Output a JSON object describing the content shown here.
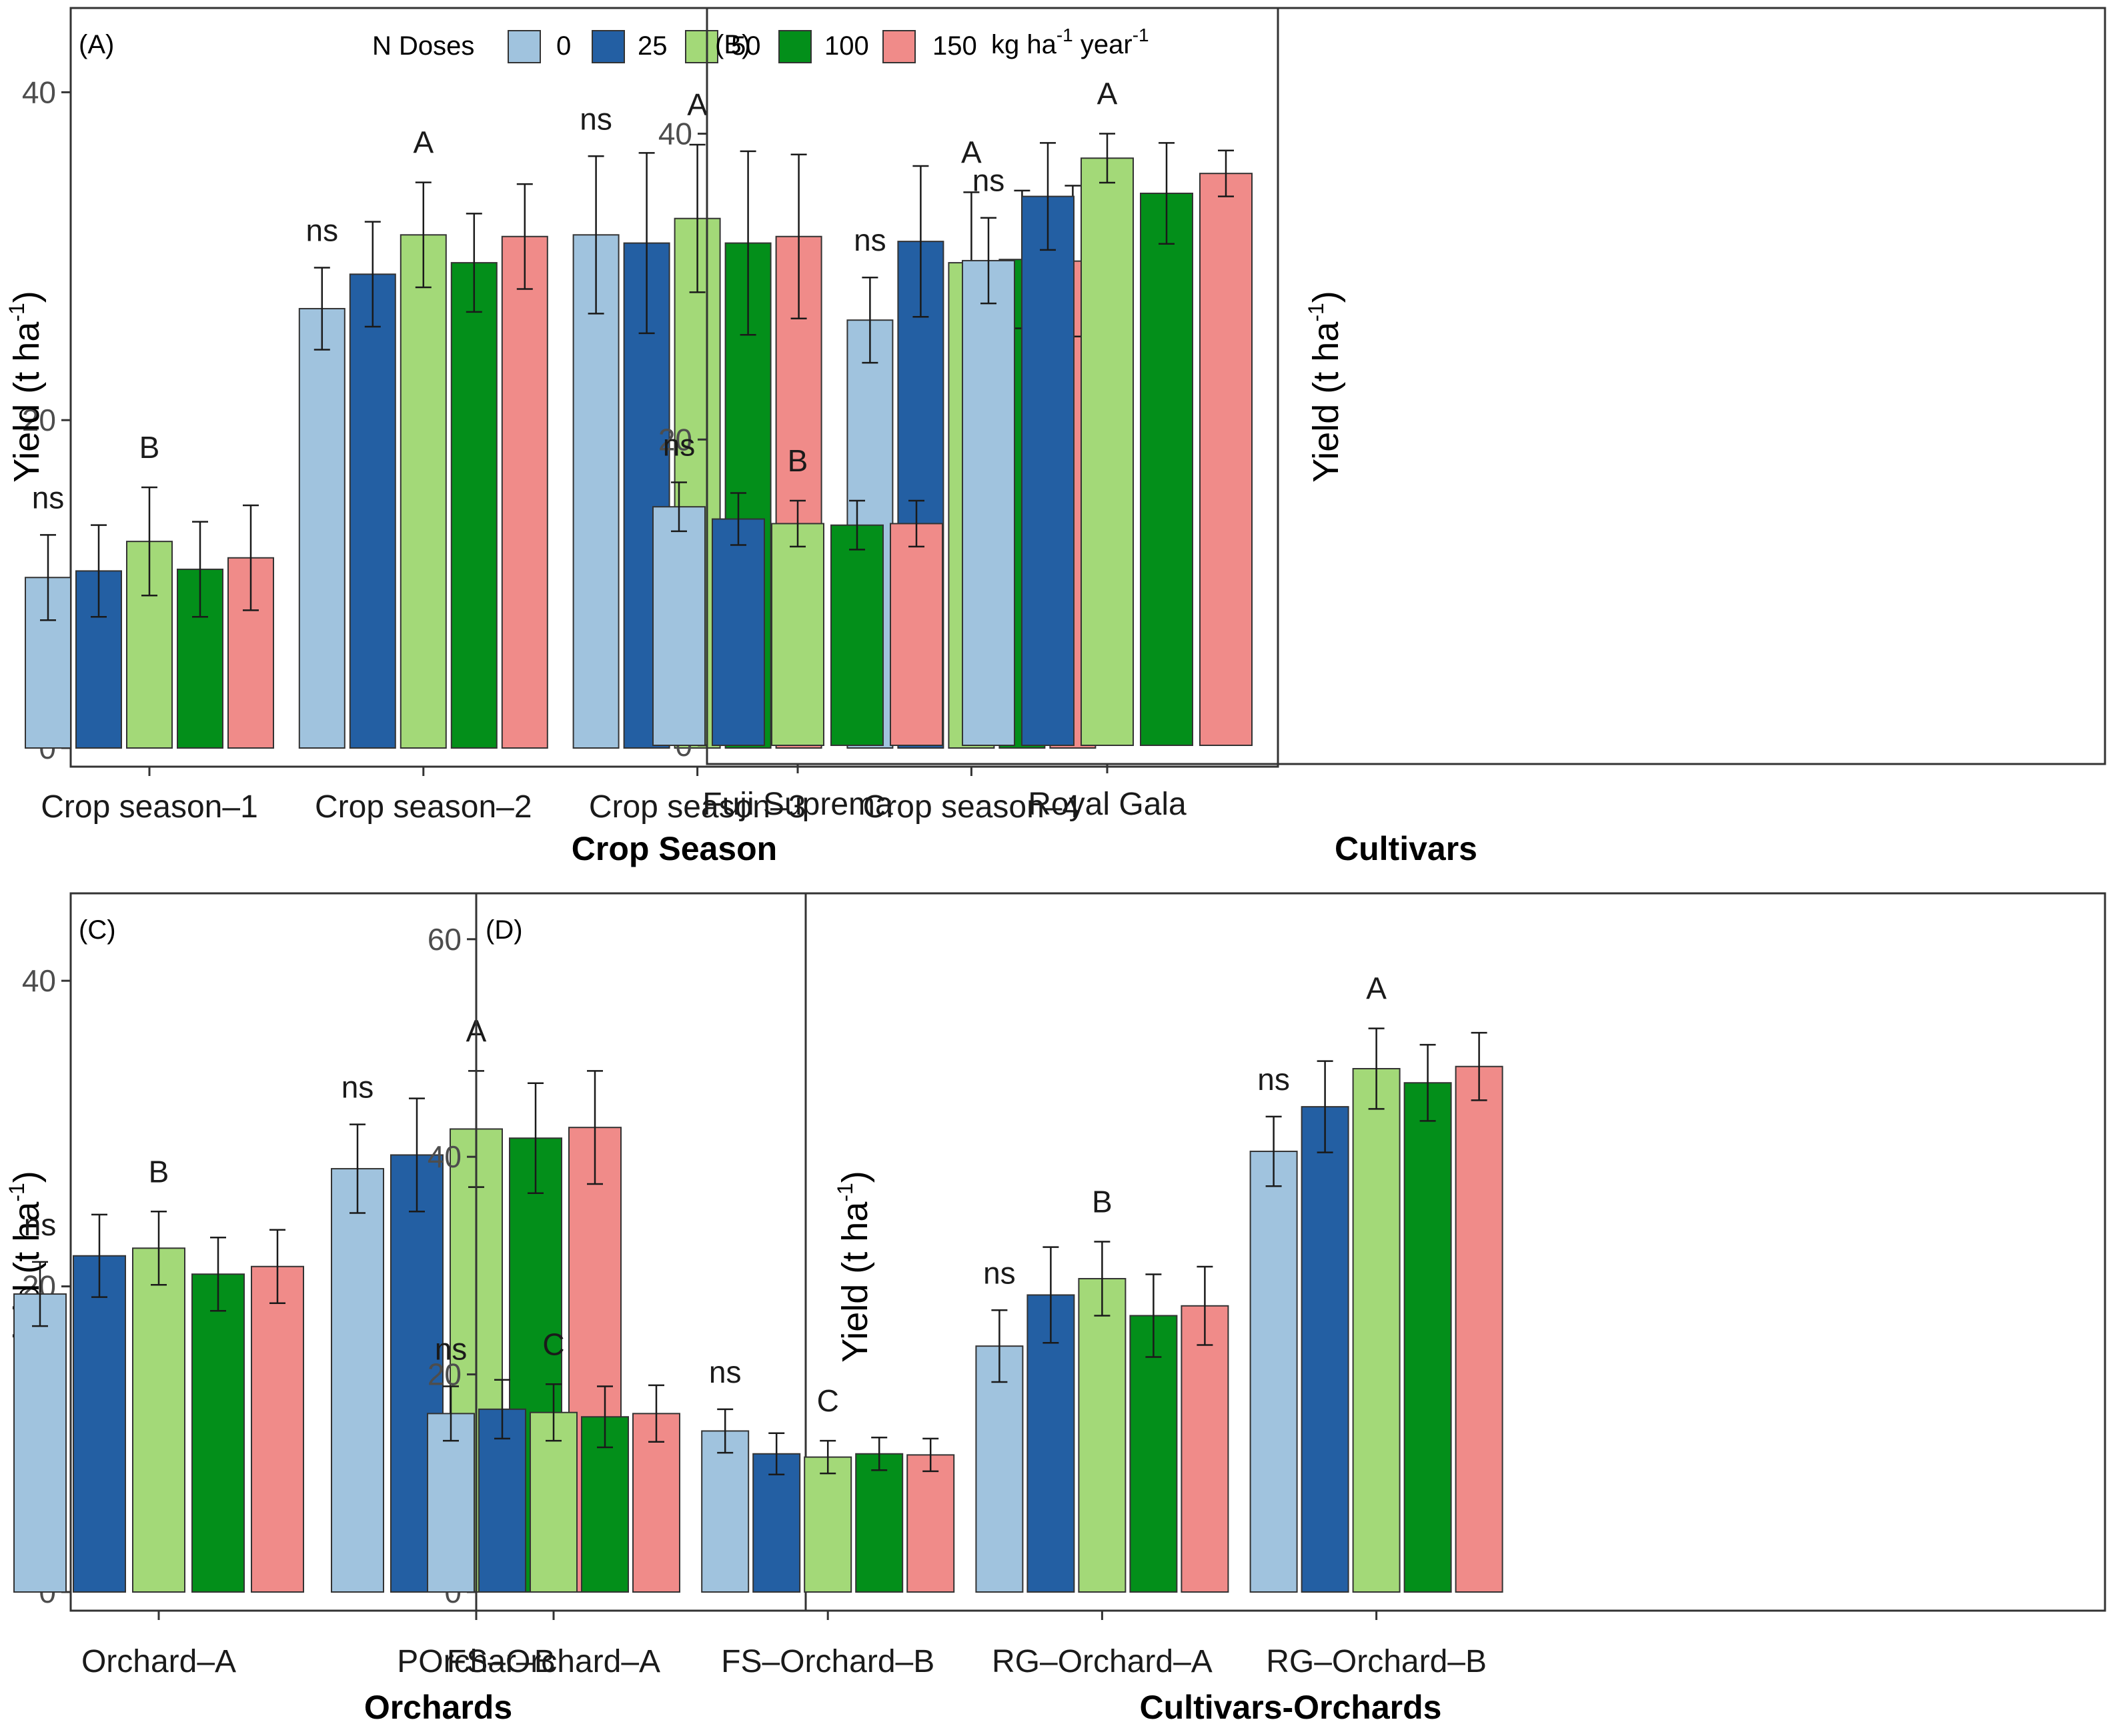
{
  "legend": {
    "title": "N Doses",
    "entries": [
      "0",
      "25",
      "50",
      "100",
      "150"
    ],
    "unit_base": "kg ha",
    "unit_sup1": "-1",
    "unit_mid": " year",
    "unit_sup2": "-1"
  },
  "colors": {
    "dose_0": "#a0c3de",
    "dose_25": "#235fa3",
    "dose_50": "#a3d978",
    "dose_100": "#038f1a",
    "dose_150": "#f08b89"
  },
  "y_title": {
    "base": "Yield (t ha",
    "sup": "-1",
    "close": ")"
  },
  "chart_data": [
    {
      "panel": "(A)",
      "type": "bar",
      "xlabel": "Crop Season",
      "ylim": [
        0,
        44
      ],
      "yticks": [
        0,
        20,
        40
      ],
      "categories": [
        "Crop season-1",
        "Crop season-2",
        "Crop season-3",
        "Crop season-4"
      ],
      "series": [
        {
          "name": "0",
          "values": [
            10.4,
            26.8,
            31.3,
            26.1
          ],
          "errors": [
            2.6,
            2.5,
            4.8,
            2.6
          ]
        },
        {
          "name": "25",
          "values": [
            10.8,
            28.9,
            30.8,
            30.9
          ],
          "errors": [
            2.8,
            3.2,
            5.5,
            4.6
          ]
        },
        {
          "name": "50",
          "values": [
            12.6,
            31.3,
            32.3,
            29.6
          ],
          "errors": [
            3.3,
            3.2,
            4.5,
            4.3
          ]
        },
        {
          "name": "100",
          "values": [
            10.9,
            29.6,
            30.8,
            29.8
          ],
          "errors": [
            2.9,
            3.0,
            5.6,
            4.2
          ]
        },
        {
          "name": "150",
          "values": [
            11.6,
            31.2,
            31.2,
            29.7
          ],
          "errors": [
            3.2,
            3.2,
            5.0,
            4.6
          ]
        }
      ],
      "annotations": [
        {
          "cat": 0,
          "ns": "ns",
          "sig": "B"
        },
        {
          "cat": 1,
          "ns": "ns",
          "sig": "A"
        },
        {
          "cat": 2,
          "ns": "ns",
          "sig": "A"
        },
        {
          "cat": 3,
          "ns": "ns",
          "sig": "A"
        }
      ]
    },
    {
      "panel": "(B)",
      "type": "bar",
      "xlabel": "Cultivars",
      "ylim": [
        0,
        47
      ],
      "yticks": [
        0,
        20,
        40
      ],
      "categories": [
        "Fuji Suprema",
        "Royal Gala"
      ],
      "series": [
        {
          "name": "0",
          "values": [
            15.6,
            31.7
          ],
          "errors": [
            1.6,
            2.8
          ]
        },
        {
          "name": "25",
          "values": [
            14.8,
            35.9
          ],
          "errors": [
            1.7,
            3.5
          ]
        },
        {
          "name": "50",
          "values": [
            14.5,
            38.4
          ],
          "errors": [
            1.5,
            1.6
          ]
        },
        {
          "name": "100",
          "values": [
            14.4,
            36.1
          ],
          "errors": [
            1.6,
            3.3
          ]
        },
        {
          "name": "150",
          "values": [
            14.5,
            37.4
          ],
          "errors": [
            1.5,
            1.5
          ]
        }
      ],
      "annotations": [
        {
          "cat": 0,
          "ns": "ns",
          "sig": "B"
        },
        {
          "cat": 1,
          "ns": "ns",
          "sig": "A"
        }
      ]
    },
    {
      "panel": "(C)",
      "type": "bar",
      "xlabel": "Orchards",
      "ylim": [
        0,
        44.5
      ],
      "yticks": [
        0,
        20,
        40
      ],
      "categories": [
        "Orchard-A",
        "POrchar-B"
      ],
      "series": [
        {
          "name": "0",
          "values": [
            19.5,
            27.7
          ],
          "errors": [
            2.1,
            2.9
          ]
        },
        {
          "name": "25",
          "values": [
            22.0,
            28.6
          ],
          "errors": [
            2.7,
            3.7
          ]
        },
        {
          "name": "50",
          "values": [
            22.5,
            30.3
          ],
          "errors": [
            2.4,
            3.8
          ]
        },
        {
          "name": "100",
          "values": [
            20.8,
            29.7
          ],
          "errors": [
            2.4,
            3.6
          ]
        },
        {
          "name": "150",
          "values": [
            21.3,
            30.4
          ],
          "errors": [
            2.4,
            3.7
          ]
        }
      ],
      "annotations": [
        {
          "cat": 0,
          "ns": "ns",
          "sig": "B"
        },
        {
          "cat": 1,
          "ns": "ns",
          "sig": "A"
        }
      ]
    },
    {
      "panel": "(D)",
      "type": "bar",
      "xlabel": "Cultivars-Orchards",
      "ylim": [
        0,
        62.5
      ],
      "yticks": [
        0,
        20,
        40,
        60
      ],
      "categories": [
        "FS-Orchard-A",
        "FS-Orchard-B",
        "RG-Orchard-A",
        "RG-Orchard-B"
      ],
      "series": [
        {
          "name": "0",
          "values": [
            16.4,
            14.8,
            22.6,
            40.5
          ],
          "errors": [
            2.5,
            2.0,
            3.3,
            3.2
          ]
        },
        {
          "name": "25",
          "values": [
            16.8,
            12.7,
            27.3,
            44.6
          ],
          "errors": [
            2.7,
            1.9,
            4.4,
            4.2
          ]
        },
        {
          "name": "50",
          "values": [
            16.5,
            12.4,
            28.8,
            48.1
          ],
          "errors": [
            2.6,
            1.5,
            3.4,
            3.7
          ]
        },
        {
          "name": "100",
          "values": [
            16.1,
            12.7,
            25.4,
            46.8
          ],
          "errors": [
            2.8,
            1.5,
            3.8,
            3.5
          ]
        },
        {
          "name": "150",
          "values": [
            16.4,
            12.6,
            26.3,
            48.3
          ],
          "errors": [
            2.6,
            1.5,
            3.6,
            3.1
          ]
        }
      ],
      "annotations": [
        {
          "cat": 0,
          "ns": "ns",
          "sig": "C"
        },
        {
          "cat": 1,
          "ns": "ns",
          "sig": "C"
        },
        {
          "cat": 2,
          "ns": "ns",
          "sig": "B"
        },
        {
          "cat": 3,
          "ns": "ns",
          "sig": "A"
        }
      ]
    }
  ]
}
